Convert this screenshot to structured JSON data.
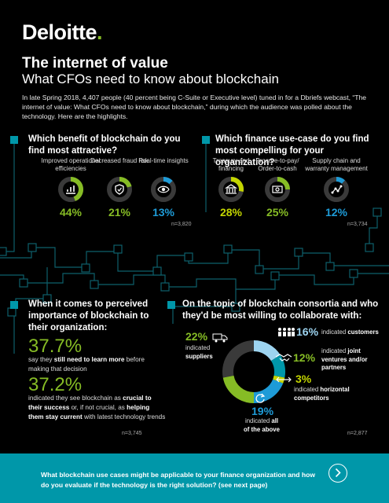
{
  "brand": {
    "name": "Deloitte",
    "dot": "."
  },
  "header": {
    "title": "The internet of value",
    "subtitle": "What CFOs need to know about blockchain",
    "intro": "In late Spring 2018, 4,407 people (40 percent being C-Suite or Executive level) tuned in for a Dbriefs webcast, “The internet of value: What CFOs need to know about blockchain,” during which the audience was polled about the technology. Here are the highlights."
  },
  "q1": {
    "heading": "Which benefit of blockchain do you find most attractive?",
    "options": [
      {
        "label": "Improved operational efficiencies",
        "pct": "44%",
        "value": 44,
        "color": "#86bc25",
        "icon": "chart-icon"
      },
      {
        "label": "Decreased fraud risk",
        "pct": "21%",
        "value": 21,
        "color": "#86bc25",
        "icon": "shield-icon"
      },
      {
        "label": "Real-time insights",
        "pct": "13%",
        "value": 13,
        "color": "#1e9bd7",
        "icon": "eye-icon"
      }
    ],
    "n": "n=3,820"
  },
  "q2": {
    "heading": "Which finance use-case do you find most compelling for your organization?",
    "options": [
      {
        "label": "Treasury and financing",
        "pct": "28%",
        "value": 28,
        "color": "#c4d600",
        "icon": "bank-icon"
      },
      {
        "label": "Procure-to-pay/ Order-to-cash",
        "pct": "25%",
        "value": 25,
        "color": "#86bc25",
        "icon": "money-icon"
      },
      {
        "label": "Supply chain and warranty management",
        "pct": "12%",
        "value": 12,
        "color": "#1e9bd7",
        "icon": "network-icon"
      }
    ],
    "n": "n=3,734"
  },
  "q3": {
    "heading": "When it comes to perceived importance of blockchain to their organization:",
    "stat1": {
      "pct": "37.7%",
      "pre": "say they ",
      "bold": "still need to learn more",
      "post": " before making that decision"
    },
    "stat2": {
      "pct": "37.2%",
      "pre": "indicated they see blockchain as ",
      "bold1": "crucial to their success",
      "mid": " or, if not crucial, as ",
      "bold2": "helping them stay current",
      "post": " with latest technology trends"
    },
    "n": "n=3,745"
  },
  "q4": {
    "heading": "On the topic of blockchain consortia and who they'd be most willing to collaborate with:",
    "items": [
      {
        "pct": "16%",
        "pre": "indicated ",
        "bold": "customers",
        "value": 16,
        "color": "#9dd4f0",
        "icon": "people-icon"
      },
      {
        "pct": "12%",
        "pre": "indicated ",
        "bold": "joint ventures and/or partners",
        "value": 12,
        "color": "#0097a9",
        "icon": "handshake-icon"
      },
      {
        "pct": "3%",
        "pre": "indicated ",
        "bold": "horizontal competitors",
        "value": 3,
        "color": "#c4d600",
        "icon": "arrows-icon"
      },
      {
        "pct": "19%",
        "pre": "indicated ",
        "bold": "all of the above",
        "value": 19,
        "color": "#1e9bd7",
        "icon": "cycle-icon"
      },
      {
        "pct": "22%",
        "pre": "indicated ",
        "bold": "suppliers",
        "value": 22,
        "color": "#86bc25",
        "icon": "truck-icon"
      }
    ],
    "n": "n=2,877"
  },
  "footer": {
    "text": "What blockchain use cases might be applicable to your finance organization and how do you evaluate if the technology is the right solution? (see next page)"
  },
  "colors": {
    "teal": "#0097a9",
    "green": "#86bc25",
    "blue": "#1e9bd7",
    "lime": "#c4d600",
    "gray": "#3a3a3a"
  }
}
